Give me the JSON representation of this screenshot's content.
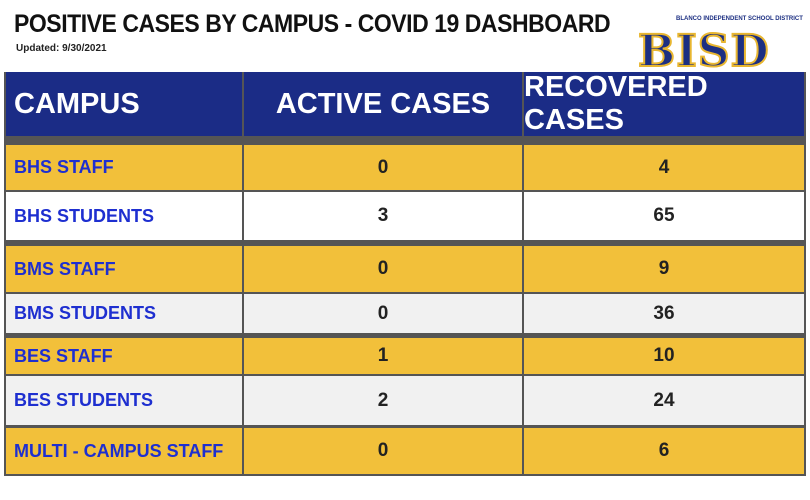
{
  "header": {
    "title": "POSITIVE CASES BY CAMPUS - COVID 19 DASHBOARD",
    "updated": "Updated: 9/30/2021"
  },
  "logo": {
    "name": "BISD",
    "subtitle": "BLANCO INDEPENDENT SCHOOL DISTRICT"
  },
  "table": {
    "columns": [
      "CAMPUS",
      "ACTIVE CASES",
      "RECOVERED CASES"
    ],
    "rows": [
      [
        "BHS STAFF",
        0,
        4
      ],
      [
        "BHS STUDENTS",
        3,
        65
      ],
      [
        "BMS STAFF",
        0,
        9
      ],
      [
        "BMS STUDENTS",
        0,
        36
      ],
      [
        "BES STAFF",
        1,
        10
      ],
      [
        "BES STUDENTS",
        2,
        24
      ],
      [
        "MULTI - CAMPUS STAFF",
        0,
        6
      ]
    ]
  }
}
